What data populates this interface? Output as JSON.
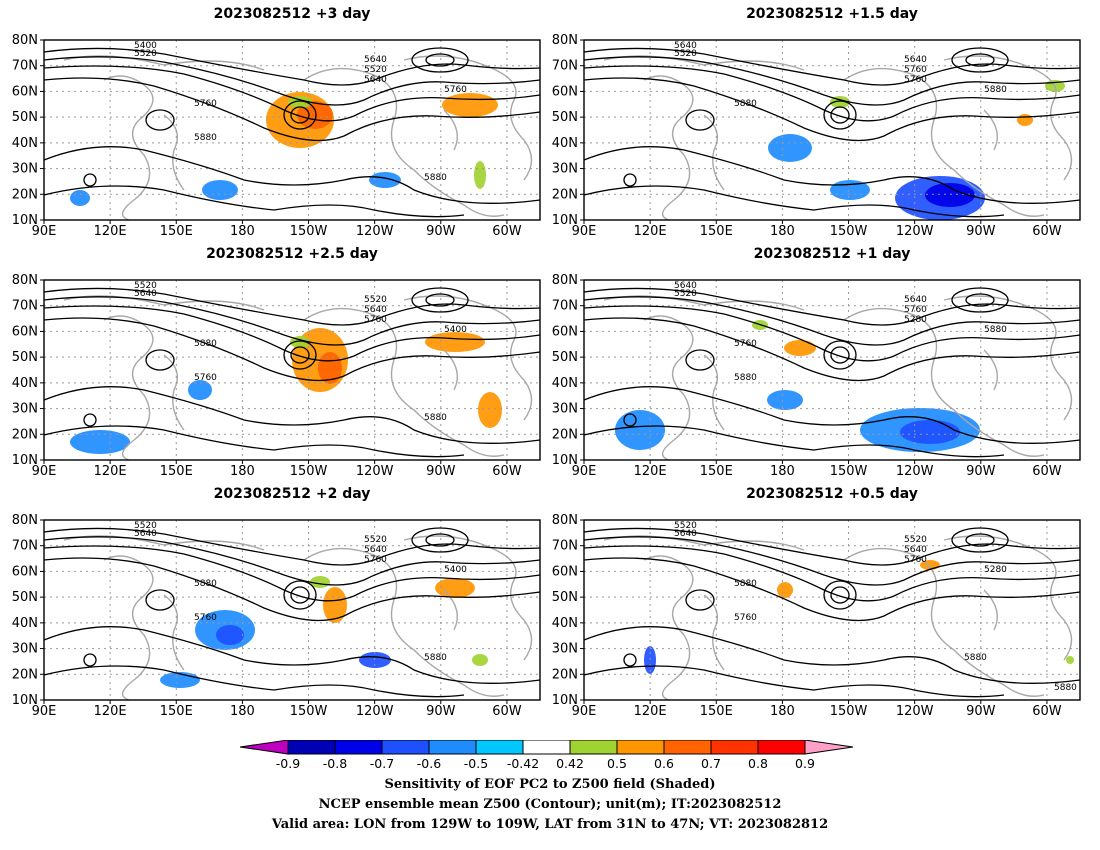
{
  "panels": [
    {
      "title": "2023082512  +3 day",
      "contour_labels": [
        "5400",
        "5520",
        "5640",
        "5520",
        "5640",
        "5760",
        "5760",
        "5880",
        "5880"
      ]
    },
    {
      "title": "2023082512  +1.5 day",
      "contour_labels": [
        "5640",
        "5520",
        "5640",
        "5760",
        "5760",
        "5880",
        "5880"
      ]
    },
    {
      "title": "2023082512  +2.5 day",
      "contour_labels": [
        "5520",
        "5640",
        "5520",
        "5640",
        "5760",
        "5400",
        "5880",
        "5760",
        "5880"
      ]
    },
    {
      "title": "2023082512  +1 day",
      "contour_labels": [
        "5640",
        "5520",
        "5640",
        "5760",
        "5280",
        "5880",
        "5760",
        "5880"
      ]
    },
    {
      "title": "2023082512  +2 day",
      "contour_labels": [
        "5520",
        "5640",
        "5520",
        "5640",
        "5760",
        "5400",
        "5880",
        "5760",
        "5880"
      ]
    },
    {
      "title": "2023082512  +0.5 day",
      "contour_labels": [
        "5520",
        "5640",
        "5520",
        "5640",
        "5760",
        "5280",
        "5880",
        "5760",
        "5880",
        "5880"
      ]
    }
  ],
  "lat_labels": [
    "80N",
    "70N",
    "60N",
    "50N",
    "40N",
    "30N",
    "20N",
    "10N"
  ],
  "lon_labels": [
    "90E",
    "120E",
    "150E",
    "180",
    "150W",
    "120W",
    "90W",
    "60W"
  ],
  "colorbar": {
    "ticks": [
      "-0.9",
      "-0.8",
      "-0.7",
      "-0.6",
      "-0.5",
      "-0.42",
      "0.42",
      "0.5",
      "0.6",
      "0.7",
      "0.8",
      "0.9"
    ],
    "colors": [
      "#c000c0",
      "#0000b4",
      "#0000e8",
      "#1e50ff",
      "#1e8cff",
      "#00c8ff",
      "#ffffff",
      "#a0d232",
      "#ff9600",
      "#ff6400",
      "#ff3200",
      "#ff0000",
      "#ffa0c8"
    ]
  },
  "captions": [
    "Sensitivity of EOF PC2 to Z500 field (Shaded)",
    "NCEP ensemble mean Z500 (Contour); unit(m); IT:2023082512",
    "Valid area: LON from 129W to 109W, LAT from 31N to 47N; VT: 2023082812"
  ]
}
